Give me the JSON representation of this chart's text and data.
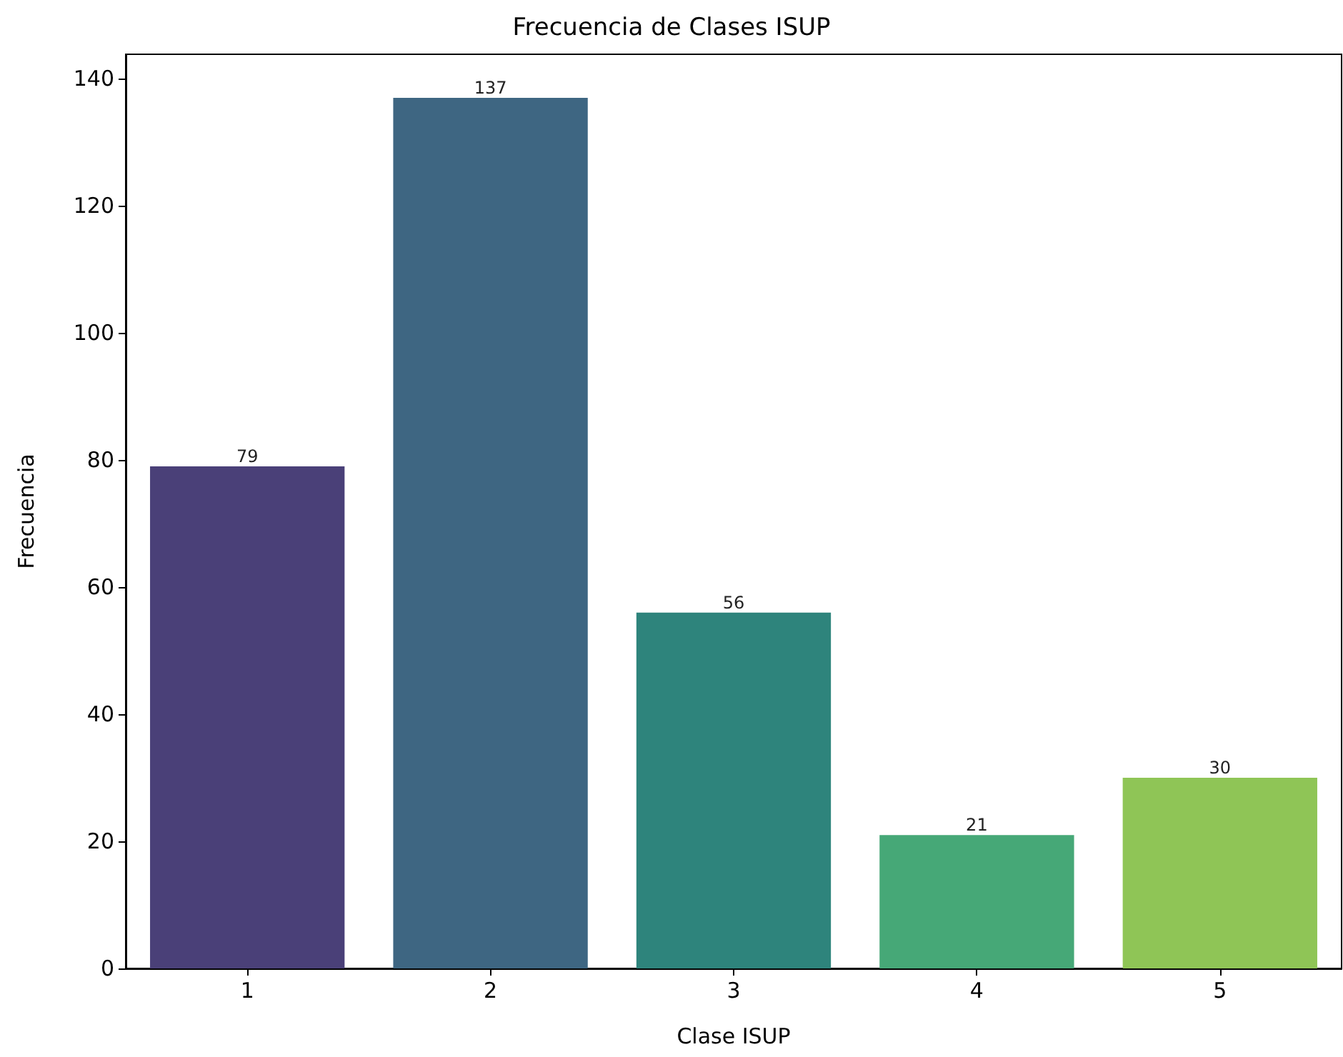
{
  "chart_data": {
    "type": "bar",
    "title": "Frecuencia de Clases ISUP",
    "xlabel": "Clase ISUP",
    "ylabel": "Frecuencia",
    "categories": [
      "1",
      "2",
      "3",
      "4",
      "5"
    ],
    "values": [
      79,
      137,
      56,
      21,
      30
    ],
    "colors": [
      "#4a4078",
      "#3e6682",
      "#2e847c",
      "#46a877",
      "#8fc556"
    ],
    "ylim": [
      0,
      143.85
    ],
    "yticks": [
      0,
      20,
      40,
      60,
      80,
      100,
      120,
      140
    ],
    "data_labels": true,
    "grid": false
  }
}
